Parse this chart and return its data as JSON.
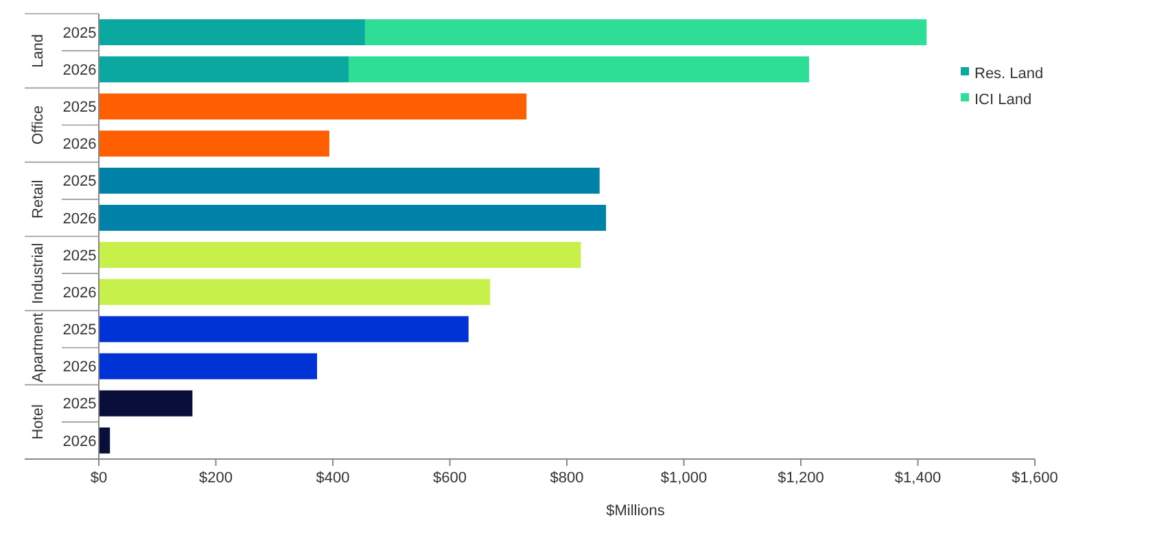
{
  "chart_data": {
    "type": "bar",
    "orientation": "horizontal",
    "stacked": true,
    "xlabel": "$Millions",
    "categories": [
      "2025",
      "2026",
      "2025",
      "2026",
      "2025",
      "2026",
      "2025",
      "2026",
      "2025",
      "2026",
      "2025",
      "2026"
    ],
    "annotations": [
      "Land",
      "Office",
      "Retail",
      "Industrial",
      "Apartment",
      "Hotel"
    ],
    "series": [
      {
        "name": "Res. Land",
        "color": "#0aa89e",
        "values": [
          455,
          427,
          null,
          null,
          null,
          null,
          null,
          null,
          null,
          null,
          null,
          null
        ]
      },
      {
        "name": "ICI Land",
        "color": "#2ede96",
        "values": [
          960,
          787,
          null,
          null,
          null,
          null,
          null,
          null,
          null,
          null,
          null,
          null
        ]
      },
      {
        "color": "#ff5f00",
        "values": [
          null,
          null,
          731,
          394,
          null,
          null,
          null,
          null,
          null,
          null,
          null,
          null
        ]
      },
      {
        "color": "#0081a8",
        "values": [
          null,
          null,
          null,
          null,
          856,
          867,
          null,
          null,
          null,
          null,
          null,
          null
        ]
      },
      {
        "color": "#c8f04a",
        "values": [
          null,
          null,
          null,
          null,
          null,
          null,
          824,
          669,
          null,
          null,
          null,
          null
        ]
      },
      {
        "color": "#0033d6",
        "values": [
          null,
          null,
          null,
          null,
          null,
          null,
          null,
          null,
          632,
          373,
          null,
          null
        ]
      },
      {
        "color": "#0a0f3a",
        "values": [
          null,
          null,
          null,
          null,
          null,
          null,
          null,
          null,
          null,
          null,
          160,
          19
        ]
      }
    ],
    "xlim": [
      0,
      1600
    ],
    "xticks": [
      {
        "value": 0,
        "label": "$0"
      },
      {
        "value": 200,
        "label": "$200"
      },
      {
        "value": 400,
        "label": "$400"
      },
      {
        "value": 600,
        "label": "$600"
      },
      {
        "value": 800,
        "label": "$800"
      },
      {
        "value": 1000,
        "label": "$1,000"
      },
      {
        "value": 1200,
        "label": "$1,200"
      },
      {
        "value": 1400,
        "label": "$1,400"
      },
      {
        "value": 1600,
        "label": "$1,600"
      }
    ],
    "grid": false,
    "legend": "right"
  }
}
